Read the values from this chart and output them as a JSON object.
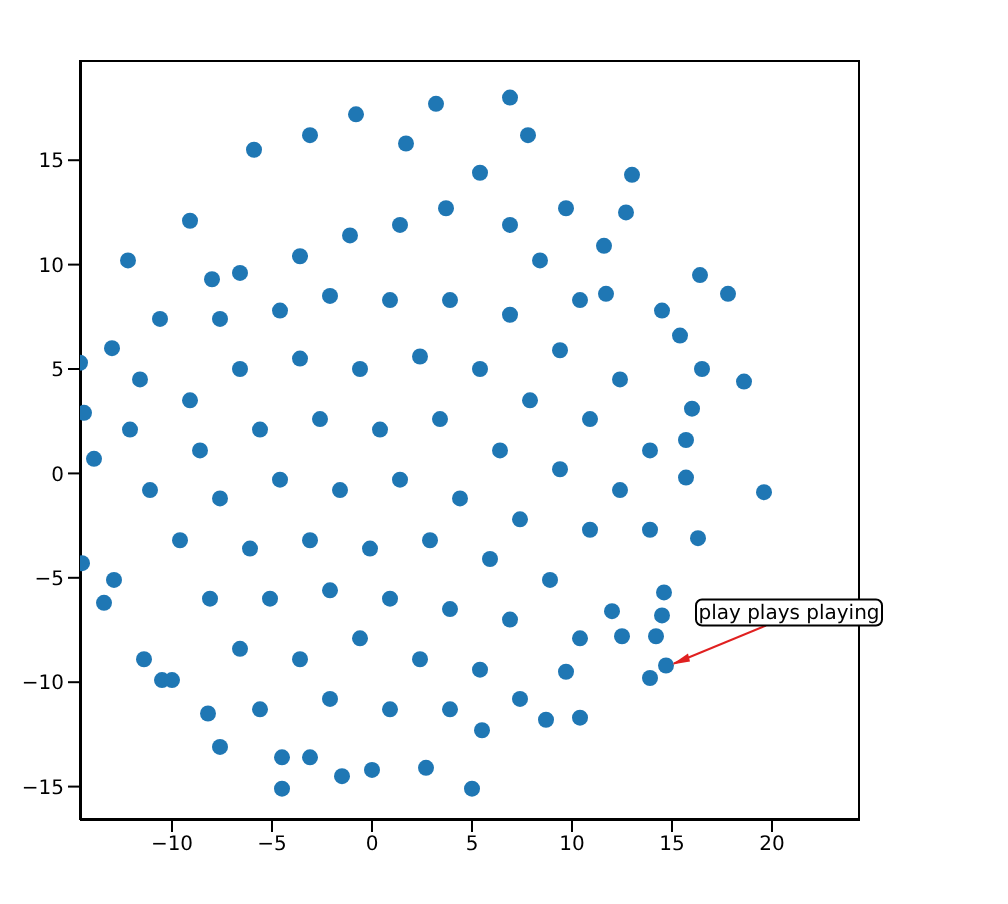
{
  "chart_data": {
    "type": "scatter",
    "marker": "circle",
    "grid": false,
    "legend": false,
    "xlim": [
      -14.6,
      24.4
    ],
    "ylim": [
      -16.6,
      19.8
    ],
    "xticks": [
      -10,
      -5,
      0,
      5,
      10,
      15,
      20
    ],
    "yticks": [
      -15,
      -10,
      -5,
      0,
      5,
      10,
      15
    ],
    "annotations": [
      {
        "text": "play plays playing",
        "x": 14.7,
        "y": -9.2
      }
    ],
    "series": [
      {
        "color": "#1f77b4",
        "x": [
          6.9,
          3.2,
          -0.8,
          -5.9,
          1.7,
          -3.1,
          7.8,
          5.4,
          13.0,
          12.7,
          -12.2,
          -9.1,
          -8.0,
          -13.0,
          -14.4,
          -14.6,
          -13.9,
          -14.5,
          -12.9,
          -13.4,
          -11.4,
          -10.5,
          -10.0,
          -8.2,
          -7.6,
          -4.5,
          -4.5,
          -3.1,
          -1.5,
          0.0,
          2.7,
          5.0,
          5.5,
          8.7,
          10.4,
          9.7,
          13.9,
          14.7,
          14.2,
          12.5,
          12.0,
          14.5,
          16.3,
          14.6,
          19.6,
          15.7,
          16.0,
          15.7,
          16.5,
          18.6,
          17.8,
          16.4,
          15.4,
          14.5,
          11.6,
          11.7,
          9.7,
          -6.6,
          -3.6,
          -1.1,
          1.4,
          3.7,
          6.9,
          8.4,
          10.4,
          -10.6,
          -7.6,
          -4.6,
          -2.1,
          0.9,
          3.9,
          6.9,
          9.4,
          12.4,
          -11.6,
          -9.1,
          -6.6,
          -3.6,
          -0.6,
          2.4,
          5.4,
          7.9,
          10.9,
          13.9,
          -12.1,
          -8.6,
          -5.6,
          -2.6,
          0.4,
          3.4,
          6.4,
          9.4,
          12.4,
          -11.1,
          -7.6,
          -4.6,
          -1.6,
          1.4,
          4.4,
          7.4,
          10.9,
          13.9,
          -9.6,
          -6.1,
          -3.1,
          -0.1,
          2.9,
          5.9,
          8.9,
          -8.1,
          -5.1,
          -2.1,
          0.9,
          3.9,
          6.9,
          10.4,
          -6.6,
          -3.6,
          -0.6,
          2.4,
          5.4,
          -5.6,
          -2.1,
          0.9,
          3.9,
          7.4
        ],
        "values": [
          18.0,
          17.7,
          17.2,
          15.5,
          15.8,
          16.2,
          16.2,
          14.4,
          14.3,
          12.5,
          10.2,
          12.1,
          9.3,
          6.0,
          2.9,
          5.3,
          0.7,
          -4.3,
          -5.1,
          -6.2,
          -8.9,
          -9.9,
          -9.9,
          -11.5,
          -13.1,
          -13.6,
          -15.1,
          -13.6,
          -14.5,
          -14.2,
          -14.1,
          -15.1,
          -12.3,
          -11.8,
          -11.7,
          -9.5,
          -9.8,
          -9.2,
          -7.8,
          -7.8,
          -6.6,
          -6.8,
          -3.1,
          -5.7,
          -0.9,
          -0.2,
          3.1,
          1.6,
          5.0,
          4.4,
          8.6,
          9.5,
          6.6,
          7.8,
          10.9,
          8.6,
          12.7,
          9.6,
          10.4,
          11.4,
          11.9,
          12.7,
          11.9,
          10.2,
          8.3,
          7.4,
          7.4,
          7.8,
          8.5,
          8.3,
          8.3,
          7.6,
          5.9,
          4.5,
          4.5,
          3.5,
          5.0,
          5.5,
          5.0,
          5.6,
          5.0,
          3.5,
          2.6,
          1.1,
          2.1,
          1.1,
          2.1,
          2.6,
          2.1,
          2.6,
          1.1,
          0.2,
          -0.8,
          -0.8,
          -1.2,
          -0.3,
          -0.8,
          -0.3,
          -1.2,
          -2.2,
          -2.7,
          -2.7,
          -3.2,
          -3.6,
          -3.2,
          -3.6,
          -3.2,
          -4.1,
          -5.1,
          -6.0,
          -6.0,
          -5.6,
          -6.0,
          -6.5,
          -7.0,
          -7.9,
          -8.4,
          -8.9,
          -7.9,
          -8.9,
          -9.4,
          -11.3,
          -10.8,
          -11.3,
          -11.3,
          -10.8
        ]
      }
    ]
  }
}
